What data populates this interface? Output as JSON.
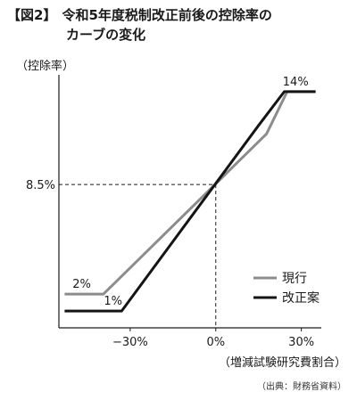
{
  "title": {
    "label": "【図2】",
    "line1": "令和5年度税制改正前後の控除率の",
    "line2": "カーブの変化"
  },
  "source_note": "（出典：財務省資料）",
  "chart_data": {
    "type": "line",
    "ylabel": "（控除率）",
    "xlabel": "（増減試験研究費割合）",
    "x_ticks": [
      {
        "value": -30,
        "label": "−30%"
      },
      {
        "value": 0,
        "label": "0%"
      },
      {
        "value": 30,
        "label": "30%"
      }
    ],
    "y_ticks": [
      {
        "value": 8.5,
        "label": "8.5%"
      }
    ],
    "xlim": [
      -55,
      37
    ],
    "ylim": [
      0,
      15
    ],
    "grid": false,
    "legend_position": "bottom-right",
    "reference_lines": [
      {
        "orientation": "horizontal",
        "value": 8.5,
        "style": "dashed"
      },
      {
        "orientation": "vertical",
        "value": 0,
        "style": "dashed"
      }
    ],
    "series": [
      {
        "name": "現行",
        "color": "#8c8c8c",
        "x": [
          -53,
          -39.4,
          17.8,
          25,
          35
        ],
        "y": [
          2,
          2,
          11.5,
          14,
          14
        ]
      },
      {
        "name": "改正案",
        "color": "#141414",
        "x": [
          -53,
          -33,
          15,
          24,
          35
        ],
        "y": [
          1,
          1,
          12,
          14,
          14
        ]
      }
    ],
    "annotations": [
      {
        "text": "14%",
        "x": 28,
        "y": 14
      },
      {
        "text": "2%",
        "x": -47,
        "y": 2
      },
      {
        "text": "1%",
        "x": -36,
        "y": 1
      }
    ]
  }
}
